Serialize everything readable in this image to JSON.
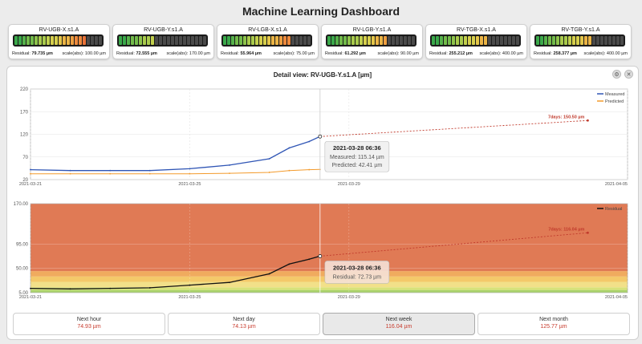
{
  "app": {
    "title": "Machine Learning Dashboard"
  },
  "gauges": [
    {
      "name": "RV-UGB-X.s1.A",
      "residual_label": "Residual:",
      "residual_value": "79.735 µm",
      "scale": "scale(abs): 100.00 µm",
      "level": 0.8
    },
    {
      "name": "RV-UGB-Y.s1.A",
      "residual_label": "Residual:",
      "residual_value": "72.555 µm",
      "scale": "scale(abs): 170.00 µm",
      "level": 0.43
    },
    {
      "name": "RV-LGB-X.s1.A",
      "residual_label": "Residual:",
      "residual_value": "55.964 µm",
      "scale": "scale(abs): 75.00 µm",
      "level": 0.75
    },
    {
      "name": "RV-LGB-Y.s1.A",
      "residual_label": "Residual:",
      "residual_value": "61.292 µm",
      "scale": "scale(abs): 90.00 µm",
      "level": 0.68
    },
    {
      "name": "RV-TGB-X.s1.A",
      "residual_label": "Residual:",
      "residual_value": "255.212 µm",
      "scale": "scale(abs): 400.00 µm",
      "level": 0.64
    },
    {
      "name": "RV-TGB-Y.s1.A",
      "residual_label": "Residual:",
      "residual_value": "258.377 µm",
      "scale": "scale(abs): 400.00 µm",
      "level": 0.65
    }
  ],
  "detail": {
    "title": "Detail view: RV-UGB-Y.s1.A [µm]",
    "settings_icon": "gear-icon",
    "close_icon": "close-icon"
  },
  "colors": {
    "measured": "#2f55b5",
    "predicted": "#f39a2b",
    "residual": "#111111",
    "forecast": "#c0392b",
    "zone_high": "#e07a55"
  },
  "chart_data": [
    {
      "type": "line",
      "x_ticks": [
        "2021-03-21",
        "2021-03-25",
        "2021-03-29",
        "2021-04-05"
      ],
      "y_ticks": [
        20,
        70,
        120,
        170,
        220
      ],
      "ylim": [
        20,
        220
      ],
      "legend": {
        "position": "top-right"
      },
      "series": [
        {
          "name": "Measured",
          "color": "#2f55b5",
          "x": [
            "2021-03-21",
            "2021-03-22",
            "2021-03-23",
            "2021-03-24",
            "2021-03-25",
            "2021-03-26",
            "2021-03-27",
            "2021-03-27 12:00",
            "2021-03-28",
            "2021-03-28 06:36"
          ],
          "values": [
            42,
            40,
            40,
            40,
            44,
            52,
            66,
            90,
            104,
            115.14
          ]
        },
        {
          "name": "Predicted",
          "color": "#f39a2b",
          "x": [
            "2021-03-21",
            "2021-03-22",
            "2021-03-23",
            "2021-03-24",
            "2021-03-25",
            "2021-03-26",
            "2021-03-27",
            "2021-03-27 12:00",
            "2021-03-28",
            "2021-03-28 06:36"
          ],
          "values": [
            33,
            33,
            33,
            33,
            33,
            34,
            36,
            40,
            42,
            42.41
          ]
        }
      ],
      "forecast": {
        "from": [
          "2021-03-28 06:36",
          115.14
        ],
        "to": [
          "2021-04-04",
          150.5
        ],
        "label": "7days: 150.50 µm"
      },
      "tooltip": {
        "title": "2021-03-28 06:36",
        "line1": "Measured: 115.14 µm",
        "line2": "Predicted: 42.41 µm"
      }
    },
    {
      "type": "area",
      "x_ticks": [
        "2021-03-21",
        "2021-03-25",
        "2021-03-29",
        "2021-04-05"
      ],
      "y_ticks": [
        "170.00",
        "95.00",
        "50.00",
        "5.00"
      ],
      "ylim": [
        5,
        170
      ],
      "legend": {
        "position": "top-right"
      },
      "series": [
        {
          "name": "Residual",
          "color": "#111111",
          "x": [
            "2021-03-21",
            "2021-03-22",
            "2021-03-23",
            "2021-03-24",
            "2021-03-25",
            "2021-03-26",
            "2021-03-27",
            "2021-03-27 12:00",
            "2021-03-28",
            "2021-03-28 06:36"
          ],
          "values": [
            13,
            12,
            13,
            14,
            19,
            24,
            40,
            58,
            67,
            72.73
          ]
        }
      ],
      "zones": [
        {
          "from": 5,
          "to": 10,
          "color": "#a9d26b"
        },
        {
          "from": 10,
          "to": 15,
          "color": "#d8e27a"
        },
        {
          "from": 15,
          "to": 25,
          "color": "#f2e089"
        },
        {
          "from": 25,
          "to": 35,
          "color": "#f4c96a"
        },
        {
          "from": 35,
          "to": 45,
          "color": "#f0ab5e"
        },
        {
          "from": 45,
          "to": 170,
          "color": "#e07a55"
        }
      ],
      "forecast": {
        "from": [
          "2021-03-28 06:36",
          72.73
        ],
        "to": [
          "2021-04-04",
          116.04
        ],
        "label": "7days: 116.04 µm"
      },
      "tooltip": {
        "title": "2021-03-28 06:36",
        "line1": "Residual: 72.73 µm"
      }
    }
  ],
  "forecasts": [
    {
      "label": "Next hour",
      "value": "74.93 µm",
      "active": false
    },
    {
      "label": "Next day",
      "value": "74.13 µm",
      "active": false
    },
    {
      "label": "Next week",
      "value": "116.04 µm",
      "active": true
    },
    {
      "label": "Next month",
      "value": "125.77 µm",
      "active": false
    }
  ]
}
